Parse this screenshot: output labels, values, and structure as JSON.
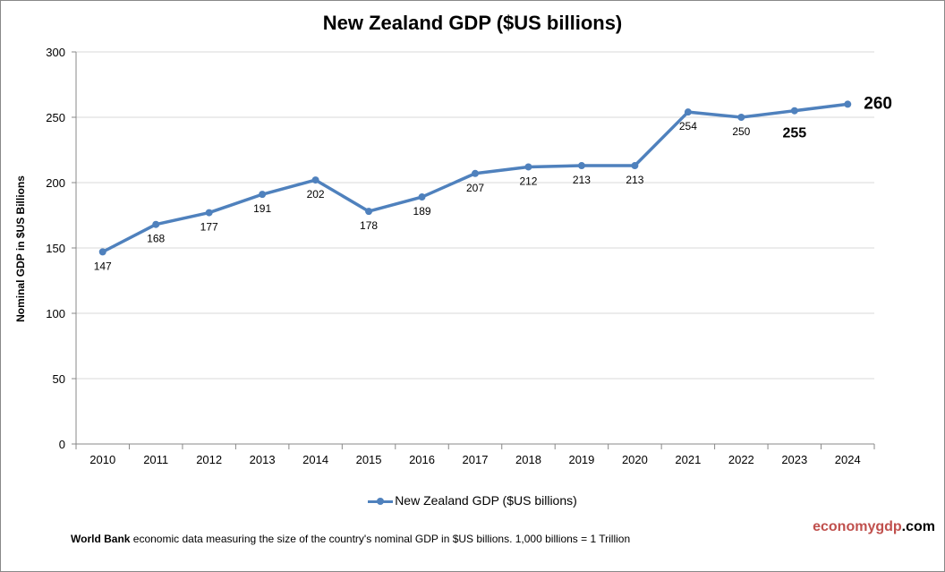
{
  "chart_data": {
    "type": "line",
    "title": "New Zealand GDP ($US billions)",
    "ylabel": "Nominal GDP in $US  Billions",
    "xlabel": "",
    "categories": [
      "2010",
      "2011",
      "2012",
      "2013",
      "2014",
      "2015",
      "2016",
      "2017",
      "2018",
      "2019",
      "2020",
      "2021",
      "2022",
      "2023",
      "2024"
    ],
    "series": [
      {
        "name": "New Zealand GDP ($US billions)",
        "values": [
          147,
          168,
          177,
          191,
          202,
          178,
          189,
          207,
          212,
          213,
          213,
          254,
          250,
          255,
          260
        ],
        "color": "#4F81BD"
      }
    ],
    "data_labels": [
      "147",
      "168",
      "177",
      "191",
      "202",
      "178",
      "189",
      "207",
      "212",
      "213",
      "213",
      "254",
      "250",
      "255",
      "260"
    ],
    "ylim": [
      0,
      300
    ],
    "yticks": [
      "0",
      "50",
      "100",
      "150",
      "200",
      "250",
      "300"
    ],
    "grid": true,
    "legend": "bottom"
  },
  "footer": {
    "source_bold": "World Bank",
    "source_text": " economic data  measuring the size of the country's nominal  GDP in $US billions. 1,000 billions = 1 Trillion",
    "brand_a": "economygdp",
    "brand_b": ".com"
  }
}
